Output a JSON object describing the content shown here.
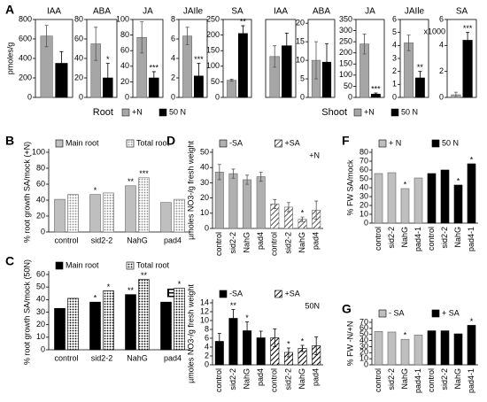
{
  "panel_a": {
    "label": "A",
    "groups": [
      {
        "name": "Root",
        "ylabel": "pmoles/g",
        "legend": [
          {
            "name": "+N",
            "color": "#a6a6a6"
          },
          {
            "name": "50 N",
            "color": "#000000"
          }
        ]
      },
      {
        "name": "Shoot",
        "legend": [
          {
            "name": "+N",
            "color": "#a6a6a6"
          },
          {
            "name": "50 N",
            "color": "#000000"
          }
        ]
      }
    ]
  },
  "chart_data": [
    {
      "type": "bar",
      "title": "IAA",
      "ylim": [
        0,
        800
      ],
      "yticks": [
        0,
        200,
        400,
        600,
        800
      ],
      "series": [
        {
          "color": "#a6a6a6",
          "values": [
            630
          ],
          "errors": [
            110
          ]
        },
        {
          "color": "#000000",
          "values": [
            350
          ],
          "errors": [
            120
          ]
        }
      ]
    },
    {
      "type": "bar",
      "title": "ABA",
      "ylim": [
        0,
        80
      ],
      "yticks": [
        0,
        20,
        40,
        60,
        80
      ],
      "series": [
        {
          "color": "#a6a6a6",
          "values": [
            55
          ],
          "errors": [
            17
          ]
        },
        {
          "color": "#000000",
          "values": [
            20
          ],
          "errors": [
            15
          ],
          "stars": [
            "*"
          ]
        }
      ]
    },
    {
      "type": "bar",
      "title": "JA",
      "ylim": [
        0,
        100
      ],
      "yticks": [
        0,
        20,
        40,
        60,
        80,
        100
      ],
      "series": [
        {
          "color": "#a6a6a6",
          "values": [
            77
          ],
          "errors": [
            20
          ]
        },
        {
          "color": "#000000",
          "values": [
            25
          ],
          "errors": [
            8
          ],
          "stars": [
            "***"
          ]
        }
      ]
    },
    {
      "type": "bar",
      "title": "JAIle",
      "ylim": [
        0,
        8
      ],
      "yticks": [
        0,
        2,
        4,
        6,
        8
      ],
      "series": [
        {
          "color": "#a6a6a6",
          "values": [
            6.3
          ],
          "errors": [
            0.9
          ]
        },
        {
          "color": "#000000",
          "values": [
            2.2
          ],
          "errors": [
            1.3
          ],
          "stars": [
            "***"
          ]
        }
      ]
    },
    {
      "type": "bar",
      "title": "SA",
      "ylim": [
        0,
        250
      ],
      "yticks": [
        0,
        50,
        100,
        150,
        200,
        250
      ],
      "series": [
        {
          "color": "#a6a6a6",
          "values": [
            55
          ],
          "errors": [
            3
          ]
        },
        {
          "color": "#000000",
          "values": [
            205
          ],
          "errors": [
            25
          ],
          "stars": [
            "**"
          ]
        }
      ]
    },
    {
      "type": "bar",
      "title": "IAA",
      "ylim": [
        0,
        800
      ],
      "series": [
        {
          "color": "#a6a6a6",
          "values": [
            420
          ],
          "errors": [
            110
          ]
        },
        {
          "color": "#000000",
          "values": [
            530
          ],
          "errors": [
            130
          ]
        }
      ]
    },
    {
      "type": "bar",
      "title": "ABA",
      "ylim": [
        0,
        21
      ],
      "yticks": [
        0,
        5,
        10,
        15,
        20
      ],
      "series": [
        {
          "color": "#a6a6a6",
          "values": [
            10
          ],
          "errors": [
            5
          ]
        },
        {
          "color": "#000000",
          "values": [
            9.5
          ],
          "errors": [
            5
          ]
        }
      ]
    },
    {
      "type": "bar",
      "title": "JA",
      "ylim": [
        0,
        350
      ],
      "yticks": [
        0,
        50,
        100,
        150,
        200,
        250,
        300,
        350
      ],
      "series": [
        {
          "color": "#a6a6a6",
          "values": [
            240
          ],
          "errors": [
            45
          ]
        },
        {
          "color": "#000000",
          "values": [
            15
          ],
          "errors": [
            5
          ],
          "stars": [
            "***"
          ]
        }
      ]
    },
    {
      "type": "bar",
      "title": "JAIle",
      "ylim": [
        0,
        6
      ],
      "yticks": [
        0,
        1,
        2,
        3,
        4,
        5,
        6
      ],
      "series": [
        {
          "color": "#a6a6a6",
          "values": [
            4.2
          ],
          "errors": [
            0.6
          ]
        },
        {
          "color": "#000000",
          "values": [
            1.5
          ],
          "errors": [
            0.5
          ],
          "stars": [
            "**"
          ]
        }
      ]
    },
    {
      "type": "bar",
      "title": "SA",
      "multiplier": "x1000",
      "ylim": [
        0,
        6
      ],
      "yticks": [
        0,
        2,
        4,
        6
      ],
      "series": [
        {
          "color": "#a6a6a6",
          "values": [
            0.2
          ],
          "errors": [
            0.2
          ]
        },
        {
          "color": "#000000",
          "values": [
            4.4
          ],
          "errors": [
            0.6
          ],
          "stars": [
            "***"
          ]
        }
      ]
    },
    {
      "type": "bar",
      "panel": "B",
      "ylabel": "% root growth SA/mock (+N)",
      "categories": [
        "control",
        "sid2-2",
        "NahG",
        "pad4"
      ],
      "ylim": [
        0,
        100
      ],
      "yticks": [
        0,
        20,
        40,
        60,
        80,
        100
      ],
      "series": [
        {
          "name": "Main root",
          "color": "#bfbfbf",
          "values": [
            41,
            47,
            58,
            37
          ],
          "stars": [
            null,
            "*",
            "**",
            null
          ]
        },
        {
          "name": "Total root",
          "color": "#8c8c8c",
          "pattern": "dots",
          "values": [
            47,
            49,
            68,
            41
          ],
          "stars": [
            null,
            null,
            "***",
            null
          ]
        }
      ]
    },
    {
      "type": "bar",
      "panel": "C",
      "ylabel": "% root growth SA/mock (50N)",
      "categories": [
        "control",
        "sid2-2",
        "NahG",
        "pad4"
      ],
      "ylim": [
        0,
        60
      ],
      "yticks": [
        0,
        10,
        20,
        30,
        40,
        50,
        60
      ],
      "series": [
        {
          "name": "Main root",
          "color": "#000000",
          "values": [
            33,
            38,
            44,
            38
          ],
          "stars": [
            null,
            "*",
            "**",
            null
          ]
        },
        {
          "name": "Total root",
          "color": "#000000",
          "pattern": "dots",
          "values": [
            41,
            47,
            56,
            49
          ],
          "stars": [
            null,
            "*",
            "**",
            "*"
          ]
        }
      ]
    },
    {
      "type": "bar",
      "panel": "D",
      "note": "+N",
      "ylabel": "µmoles NO3-/g fresh weight",
      "categories": [
        "control",
        "sid2-2",
        "NahG",
        "pad4",
        "control",
        "sid2-2",
        "NahG",
        "pad4"
      ],
      "ylim": [
        0,
        50
      ],
      "yticks": [
        0,
        10,
        20,
        30,
        40,
        50
      ],
      "series": [
        {
          "name": "-SA",
          "color": "#b0b0b0",
          "values": [
            37,
            36,
            32,
            34,
            null,
            null,
            null,
            null
          ],
          "errors": [
            5,
            3,
            3,
            3,
            null,
            null,
            null,
            null
          ]
        },
        {
          "name": "+SA",
          "color": "#555555",
          "pattern": "hatch",
          "values": [
            null,
            null,
            null,
            null,
            16,
            14,
            6,
            12
          ],
          "errors": [
            null,
            null,
            null,
            null,
            3,
            3,
            1.5,
            6
          ],
          "stars": [
            null,
            null,
            null,
            null,
            null,
            null,
            "*",
            null
          ]
        }
      ]
    },
    {
      "type": "bar",
      "panel": "E",
      "note": "50N",
      "ylabel": "µmoles NO3-/g fresh weight",
      "categories": [
        "control",
        "sid2-2",
        "NahG",
        "pad4",
        "control",
        "sid2-2",
        "NahG",
        "pad4"
      ],
      "ylim": [
        0,
        14
      ],
      "yticks": [
        0,
        2,
        4,
        6,
        8,
        10,
        12,
        14
      ],
      "series": [
        {
          "name": "-SA",
          "color": "#000000",
          "values": [
            5.3,
            10.5,
            7.7,
            6.1,
            null,
            null,
            null,
            null
          ],
          "errors": [
            1.8,
            2,
            2,
            1.5,
            null,
            null,
            null,
            null
          ],
          "stars": [
            null,
            "**",
            "*",
            null,
            null,
            null,
            null,
            null
          ]
        },
        {
          "name": "+SA",
          "color": "#000000",
          "pattern": "hatch",
          "values": [
            null,
            null,
            null,
            null,
            6.1,
            2.8,
            3.7,
            4.3
          ],
          "errors": [
            null,
            null,
            null,
            null,
            2,
            1,
            0.7,
            2
          ],
          "stars": [
            null,
            null,
            null,
            null,
            null,
            "*",
            "*",
            null
          ]
        }
      ]
    },
    {
      "type": "bar",
      "panel": "F",
      "ylabel": "% FW SA/mock",
      "categories": [
        "control",
        "sid2-2",
        "NahG",
        "pad4-1",
        "control",
        "sid2-2",
        "NahG",
        "pad4-1"
      ],
      "ylim": [
        0,
        80
      ],
      "yticks": [
        0,
        10,
        20,
        30,
        40,
        50,
        60,
        70,
        80
      ],
      "series": [
        {
          "name": "+ N",
          "color": "#bfbfbf",
          "values": [
            56,
            57,
            39,
            51,
            null,
            null,
            null,
            null
          ],
          "stars": [
            null,
            null,
            "*",
            null,
            null,
            null,
            null,
            null
          ]
        },
        {
          "name": "50 N",
          "color": "#000000",
          "values": [
            null,
            null,
            null,
            null,
            56,
            60,
            43,
            67
          ],
          "stars": [
            null,
            null,
            null,
            null,
            null,
            null,
            "*",
            "*"
          ]
        }
      ]
    },
    {
      "type": "bar",
      "panel": "G",
      "ylabel": "% FW -N/+N",
      "categories": [
        "control",
        "sid2-2",
        "NahG",
        "pad4-1",
        "control",
        "sid2-2",
        "NahG",
        "pad4-1"
      ],
      "ylim": [
        0,
        70
      ],
      "yticks": [
        0,
        10,
        20,
        30,
        40,
        50,
        60,
        70
      ],
      "series": [
        {
          "name": "- SA",
          "color": "#bfbfbf",
          "values": [
            55,
            54,
            42,
            49,
            null,
            null,
            null,
            null
          ],
          "stars": [
            null,
            null,
            "*",
            null,
            null,
            null,
            null,
            null
          ]
        },
        {
          "name": "+ SA",
          "color": "#000000",
          "values": [
            null,
            null,
            null,
            null,
            56,
            56,
            51,
            65
          ],
          "stars": [
            null,
            null,
            null,
            null,
            null,
            null,
            null,
            "*"
          ]
        }
      ]
    }
  ]
}
